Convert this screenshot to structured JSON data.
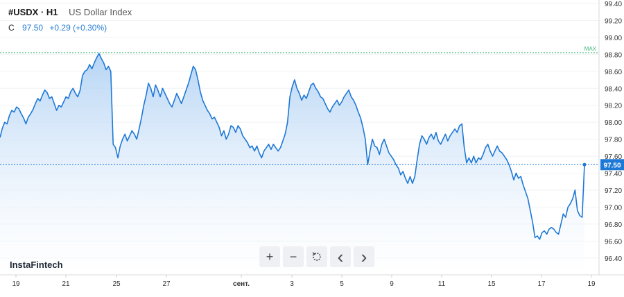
{
  "header": {
    "symbol": "#USDX · H1",
    "description": "US Dollar Index",
    "close_label": "C",
    "close_value": "97.50",
    "change": "+0.29 (+0.30%)"
  },
  "brand": "InstaFintech",
  "controls": [
    {
      "name": "zoom-in-button",
      "icon": "plus-icon",
      "glyph": "+"
    },
    {
      "name": "zoom-out-button",
      "icon": "minus-icon",
      "glyph": "−"
    },
    {
      "name": "reset-button",
      "icon": "reset-icon",
      "glyph": "reset"
    },
    {
      "name": "scroll-left-button",
      "icon": "chevron-left-icon",
      "glyph": "‹"
    },
    {
      "name": "scroll-right-button",
      "icon": "chevron-right-icon",
      "glyph": "›"
    }
  ],
  "colors": {
    "line": "#1e78d6",
    "area_top": "#a9cdf3",
    "area_bottom": "#ffffff",
    "max_line": "#3fb67a",
    "price_tag": "#1e78d6"
  },
  "chart_data": {
    "type": "area",
    "title": "#USDX · H1",
    "ylim": [
      96.3,
      99.4
    ],
    "y_ticks": [
      "99.40",
      "99.20",
      "99.00",
      "98.80",
      "98.60",
      "98.40",
      "98.20",
      "98.00",
      "97.80",
      "97.60",
      "97.40",
      "97.20",
      "97.00",
      "96.80",
      "96.60",
      "96.40"
    ],
    "x_ticks": [
      "19",
      "21",
      "25",
      "27",
      "сент.",
      "3",
      "5",
      "9",
      "11",
      "15",
      "17",
      "19"
    ],
    "max_label": "MAX",
    "max_value": 98.82,
    "last_value": 97.5,
    "last_value_label": "97.50",
    "series": [
      {
        "values": [
          97.82,
          97.93,
          98.0,
          97.98,
          98.08,
          98.14,
          98.12,
          98.18,
          98.16,
          98.1,
          98.05,
          97.98,
          98.06,
          98.1,
          98.15,
          98.22,
          98.28,
          98.25,
          98.32,
          98.38,
          98.35,
          98.28,
          98.3,
          98.22,
          98.14,
          98.2,
          98.18,
          98.24,
          98.3,
          98.28,
          98.36,
          98.4,
          98.34,
          98.3,
          98.38,
          98.55,
          98.6,
          98.62,
          98.68,
          98.63,
          98.7,
          98.76,
          98.81,
          98.75,
          98.7,
          98.62,
          98.66,
          98.6,
          97.74,
          97.7,
          97.58,
          97.72,
          97.8,
          97.86,
          97.78,
          97.84,
          97.9,
          97.86,
          97.8,
          97.92,
          98.05,
          98.2,
          98.32,
          98.46,
          98.4,
          98.3,
          98.44,
          98.38,
          98.3,
          98.4,
          98.34,
          98.28,
          98.22,
          98.18,
          98.26,
          98.34,
          98.28,
          98.22,
          98.3,
          98.38,
          98.46,
          98.56,
          98.66,
          98.62,
          98.5,
          98.36,
          98.26,
          98.2,
          98.14,
          98.1,
          98.04,
          98.06,
          98.0,
          97.94,
          97.84,
          97.9,
          97.8,
          97.86,
          97.96,
          97.94,
          97.88,
          97.96,
          97.92,
          97.84,
          97.8,
          97.76,
          97.7,
          97.72,
          97.66,
          97.72,
          97.64,
          97.58,
          97.66,
          97.7,
          97.74,
          97.68,
          97.74,
          97.7,
          97.66,
          97.7,
          97.78,
          97.86,
          98.0,
          98.3,
          98.42,
          98.5,
          98.4,
          98.34,
          98.26,
          98.32,
          98.28,
          98.36,
          98.44,
          98.46,
          98.4,
          98.36,
          98.3,
          98.28,
          98.22,
          98.16,
          98.12,
          98.18,
          98.22,
          98.26,
          98.2,
          98.24,
          98.3,
          98.34,
          98.38,
          98.3,
          98.26,
          98.2,
          98.12,
          98.05,
          97.94,
          97.8,
          97.5,
          97.66,
          97.8,
          97.72,
          97.7,
          97.62,
          97.74,
          97.8,
          97.72,
          97.64,
          97.6,
          97.56,
          97.5,
          97.46,
          97.38,
          97.42,
          97.34,
          97.28,
          97.36,
          97.28,
          97.36,
          97.56,
          97.74,
          97.84,
          97.8,
          97.74,
          97.82,
          97.86,
          97.8,
          97.88,
          97.78,
          97.74,
          97.8,
          97.86,
          97.78,
          97.84,
          97.88,
          97.92,
          97.88,
          97.96,
          97.98,
          97.7,
          97.52,
          97.58,
          97.52,
          97.6,
          97.52,
          97.58,
          97.56,
          97.62,
          97.7,
          97.74,
          97.66,
          97.6,
          97.66,
          97.72,
          97.66,
          97.64,
          97.6,
          97.56,
          97.5,
          97.42,
          97.32,
          97.4,
          97.34,
          97.36,
          97.26,
          97.18,
          97.1,
          96.96,
          96.82,
          96.64,
          96.66,
          96.62,
          96.7,
          96.72,
          96.68,
          96.74,
          96.76,
          96.74,
          96.7,
          96.68,
          96.8,
          96.92,
          96.88,
          97.0,
          97.04,
          97.1,
          97.2,
          96.96,
          96.9,
          96.88,
          97.5
        ]
      }
    ]
  }
}
